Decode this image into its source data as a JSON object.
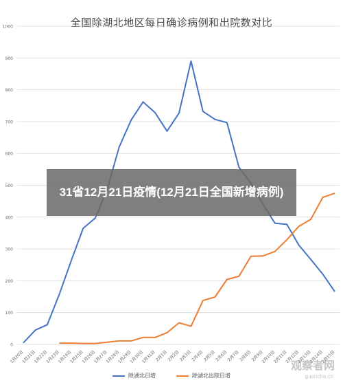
{
  "chart_data": {
    "type": "line",
    "title": "全国除湖北地区每日确诊病例和出院数对比",
    "xlabel": "",
    "ylabel": "",
    "ylim": [
      0,
      1000
    ],
    "yticks": [
      0,
      100,
      200,
      300,
      400,
      500,
      600,
      700,
      800,
      900,
      1000
    ],
    "grid": true,
    "legend_position": "bottom",
    "categories": [
      "1月20日",
      "1月21日",
      "1月22日",
      "1月23日",
      "1月24日",
      "1月25日",
      "1月26日",
      "1月27日",
      "1月28日",
      "1月29日",
      "1月30日",
      "1月31日",
      "2月1日",
      "2月2日",
      "2月3日",
      "2月4日",
      "2月5日",
      "2月6日",
      "2月7日",
      "2月8日",
      "2月9日",
      "2月10日",
      "2月11日",
      "2月12日",
      "2月13日",
      "2月14日",
      "2月15日"
    ],
    "series": [
      {
        "name": "除湖北日增",
        "color": "#4472c4",
        "values": [
          5,
          45,
          62,
          157,
          263,
          365,
          397,
          487,
          620,
          705,
          762,
          728,
          670,
          727,
          890,
          732,
          707,
          697,
          557,
          506,
          441,
          381,
          377,
          312,
          267,
          221,
          166
        ]
      },
      {
        "name": "除湖北出院日增",
        "color": "#ed7d31",
        "values": [
          null,
          null,
          null,
          4,
          4,
          3,
          3,
          7,
          11,
          11,
          22,
          22,
          37,
          68,
          57,
          138,
          149,
          204,
          214,
          277,
          278,
          292,
          329,
          371,
          393,
          462,
          475
        ]
      }
    ]
  },
  "overlay": {
    "headline": "31省12月21日疫情(12月21日全国新增病例)"
  },
  "watermark": {
    "main": "观察者网",
    "sub": "guancha.cn"
  }
}
